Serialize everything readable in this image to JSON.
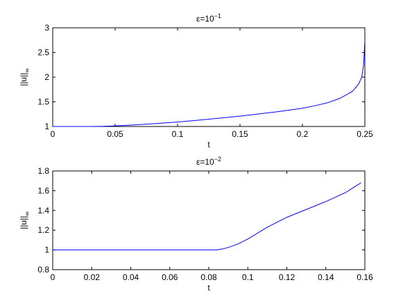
{
  "chart_data": [
    {
      "type": "line",
      "title": {
        "base": "ε=10",
        "exp": "−1"
      },
      "xlabel": "t",
      "ylabel": {
        "main": "||u||",
        "sub": "∞"
      },
      "xlim": [
        0,
        0.25
      ],
      "ylim": [
        1,
        3
      ],
      "xticks": [
        0,
        0.05,
        0.1,
        0.15,
        0.2,
        0.25
      ],
      "yticks": [
        1,
        1.5,
        2,
        2.5,
        3
      ],
      "xtick_labels": [
        "0",
        "0.05",
        "0.1",
        "0.15",
        "0.2",
        "0.25"
      ],
      "ytick_labels": [
        "1",
        "1.5",
        "2",
        "2.5",
        "3"
      ],
      "grid": false,
      "line_color": "#0000ff",
      "series": [
        {
          "x": [
            0,
            0.03,
            0.04,
            0.05,
            0.06,
            0.08,
            0.1,
            0.12,
            0.15,
            0.18,
            0.2,
            0.21,
            0.22,
            0.23,
            0.24,
            0.245,
            0.2475,
            0.249,
            0.25
          ],
          "y": [
            1.0,
            1.0,
            1.003,
            1.012,
            1.025,
            1.055,
            1.09,
            1.135,
            1.21,
            1.3,
            1.37,
            1.42,
            1.48,
            1.57,
            1.71,
            1.86,
            2.0,
            2.25,
            2.75
          ]
        }
      ]
    },
    {
      "type": "line",
      "title": {
        "base": "ε=10",
        "exp": "−2"
      },
      "xlabel": "t",
      "ylabel": {
        "main": "||u||",
        "sub": "∞"
      },
      "xlim": [
        0,
        0.16
      ],
      "ylim": [
        0.8,
        1.8
      ],
      "xticks": [
        0,
        0.02,
        0.04,
        0.06,
        0.08,
        0.1,
        0.12,
        0.14,
        0.16
      ],
      "yticks": [
        0.8,
        1,
        1.2,
        1.4,
        1.6,
        1.8
      ],
      "xtick_labels": [
        "0",
        "0.02",
        "0.04",
        "0.06",
        "0.08",
        "0.1",
        "0.12",
        "0.14",
        "0.16"
      ],
      "ytick_labels": [
        "0.8",
        "1",
        "1.2",
        "1.4",
        "1.6",
        "1.8"
      ],
      "grid": false,
      "line_color": "#0000ff",
      "series": [
        {
          "x": [
            0,
            0.084,
            0.087,
            0.09,
            0.095,
            0.1,
            0.105,
            0.11,
            0.115,
            0.12,
            0.13,
            0.14,
            0.15,
            0.158
          ],
          "y": [
            1.0,
            1.0,
            1.01,
            1.025,
            1.06,
            1.11,
            1.17,
            1.23,
            1.28,
            1.33,
            1.41,
            1.49,
            1.58,
            1.68
          ]
        }
      ]
    }
  ]
}
